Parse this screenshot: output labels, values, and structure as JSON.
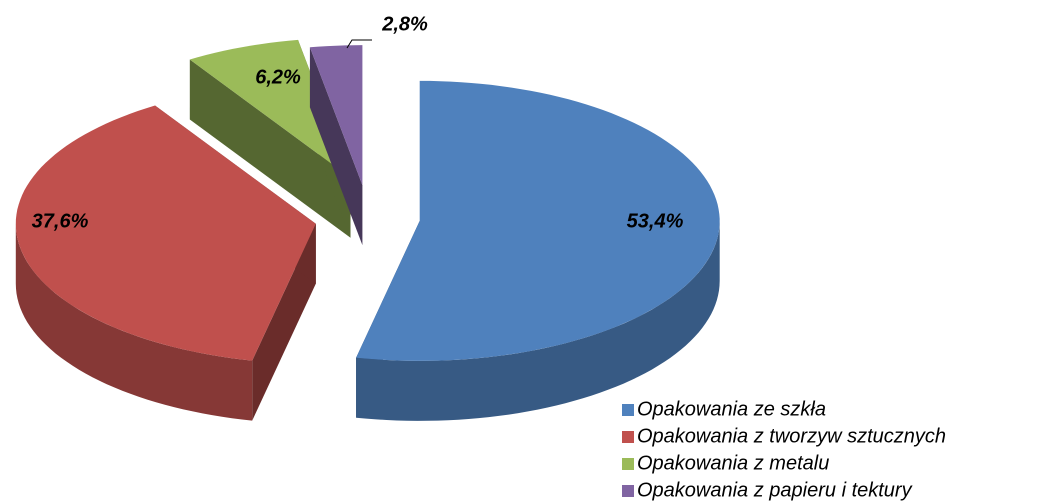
{
  "chart_data": {
    "type": "pie",
    "categories": [
      "Opakowania ze szkła",
      "Opakowania z tworzyw sztucznych",
      "Opakowania z metalu",
      "Opakowania z papieru i tektury"
    ],
    "values": [
      53.4,
      37.6,
      6.2,
      2.8
    ],
    "value_labels": [
      "53,4%",
      "37,6%",
      "6,2%",
      "2,8%"
    ],
    "colors": [
      "#4f81bd",
      "#c0504d",
      "#9bbb59",
      "#8064a2"
    ],
    "legend": "bottom-right"
  }
}
